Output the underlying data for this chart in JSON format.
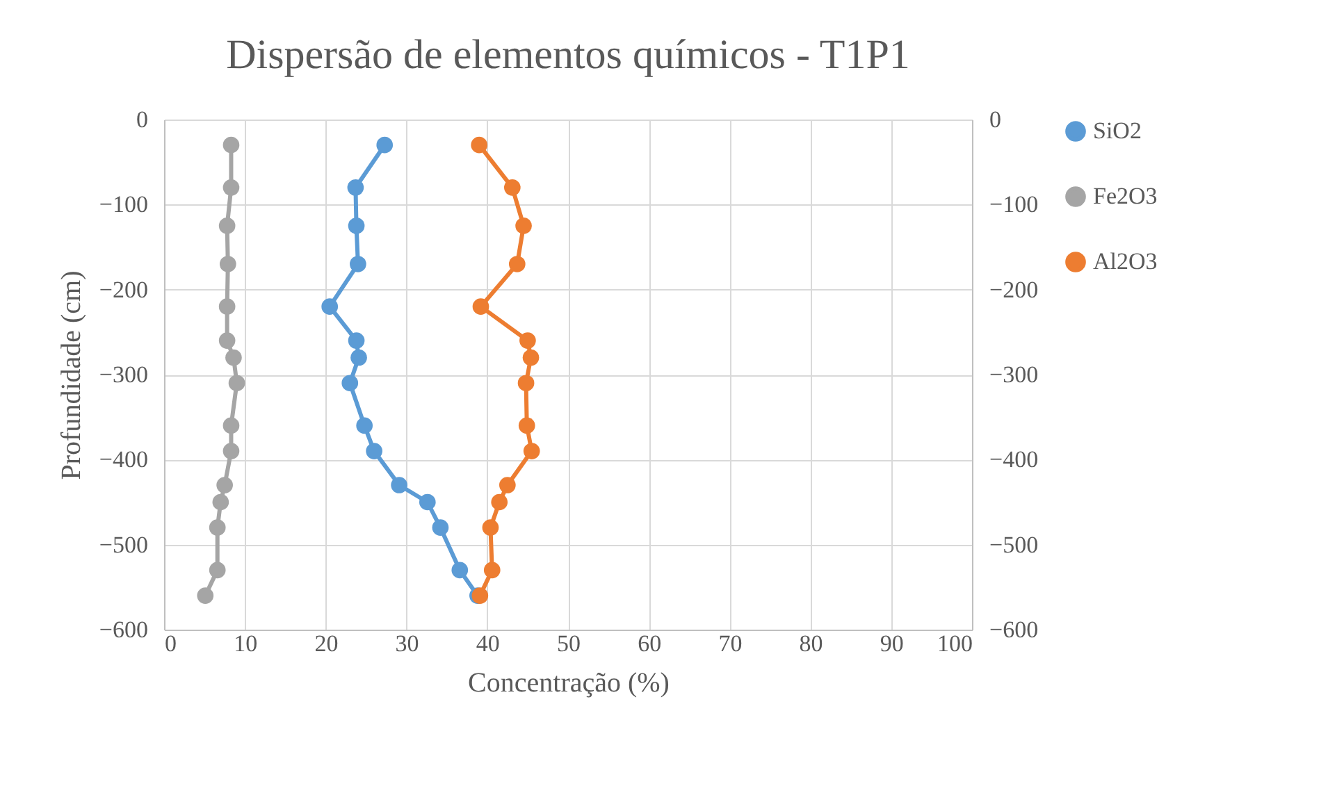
{
  "chart_data": {
    "type": "line",
    "title": "Dispersão de elementos químicos - T1P1",
    "xlabel": "Concentração (%)",
    "ylabel": "Profundidade (cm)",
    "xlim": [
      0,
      100
    ],
    "xticks": [
      0,
      10,
      20,
      30,
      40,
      50,
      60,
      70,
      80,
      90,
      100
    ],
    "ylim": [
      -600,
      0
    ],
    "yticks": [
      -600,
      -500,
      -400,
      -300,
      -200,
      -100,
      0
    ],
    "y2lim": [
      -600,
      0
    ],
    "y2ticks": [
      -600,
      -500,
      -400,
      -300,
      -200,
      -100,
      0
    ],
    "grid": true,
    "legend": "right",
    "marker": "circle",
    "line_style": "solid",
    "series": [
      {
        "name": "SiO2",
        "color": "#5b9bd5",
        "x": [
          27.3,
          23.7,
          23.8,
          24.0,
          20.5,
          23.8,
          24.1,
          23.0,
          24.8,
          26.0,
          29.1,
          32.6,
          34.2,
          36.6,
          38.8
        ],
        "values": [
          -30,
          -80,
          -125,
          -170,
          -220,
          -260,
          -280,
          -310,
          -360,
          -390,
          -430,
          -450,
          -480,
          -530,
          -560
        ]
      },
      {
        "name": "Fe2O3",
        "color": "#a5a5a5",
        "x": [
          8.3,
          8.3,
          7.8,
          7.9,
          7.8,
          7.8,
          8.6,
          9.0,
          8.3,
          8.3,
          7.5,
          7.0,
          6.6,
          6.6,
          5.1
        ],
        "values": [
          -30,
          -80,
          -125,
          -170,
          -220,
          -260,
          -280,
          -310,
          -360,
          -390,
          -430,
          -450,
          -480,
          -530,
          -560
        ]
      },
      {
        "name": "Al2O3",
        "color": "#ed7d31",
        "x": [
          39.0,
          43.1,
          44.5,
          43.7,
          39.2,
          45.0,
          45.4,
          44.8,
          44.9,
          45.5,
          42.5,
          41.5,
          40.4,
          40.6,
          39.1
        ],
        "values": [
          -30,
          -80,
          -125,
          -170,
          -220,
          -260,
          -280,
          -310,
          -360,
          -390,
          -430,
          -450,
          -480,
          -530,
          -560
        ]
      }
    ]
  }
}
